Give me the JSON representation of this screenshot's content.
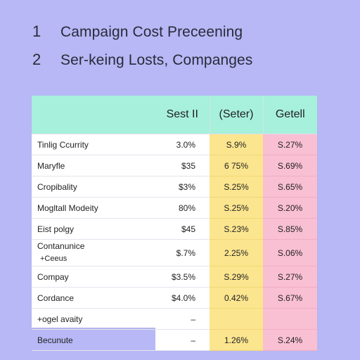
{
  "headings": [
    {
      "num": "1",
      "text": "Campaign Cost Preceening"
    },
    {
      "num": "2",
      "text": "Ser-keing Losts, Companges"
    }
  ],
  "table": {
    "columns": [
      "",
      "Sest II",
      "(Seter)",
      "Getell"
    ],
    "rows": [
      {
        "label": "Tinlig Ccurrity",
        "sub": "",
        "v1": "3.0%",
        "v2": "S.9%",
        "v3": "S.27%"
      },
      {
        "label": "Maryfle",
        "sub": "",
        "v1": "$35",
        "v2": "6 75%",
        "v3": "S.69%"
      },
      {
        "label": "Cropibality",
        "sub": "",
        "v1": "$3%",
        "v2": "S.25%",
        "v3": "S.65%"
      },
      {
        "label": "Mogltall Modeity",
        "sub": "",
        "v1": "80%",
        "v2": "S.25%",
        "v3": "S.20%"
      },
      {
        "label": "Eist polgy",
        "sub": "",
        "v1": "$45",
        "v2": "S.23%",
        "v3": "S.85%"
      },
      {
        "label": "Contanunice",
        "sub": "+Ceeus",
        "v1": "$.7%",
        "v2": "2.25%",
        "v3": "S.06%"
      },
      {
        "label": "Compay",
        "sub": "",
        "v1": "$3.5%",
        "v2": "S.29%",
        "v3": "S.27%"
      },
      {
        "label": "Cordance",
        "sub": "",
        "v1": "$4.0%",
        "v2": "0.42%",
        "v3": "S.67%"
      },
      {
        "label": "+ogel avaity",
        "sub": "",
        "v1": "–",
        "v2": "",
        "v3": ""
      },
      {
        "label": "Becunute",
        "sub": "",
        "v1": "–",
        "v2": "1.26%",
        "v3": "S.24%"
      }
    ]
  }
}
